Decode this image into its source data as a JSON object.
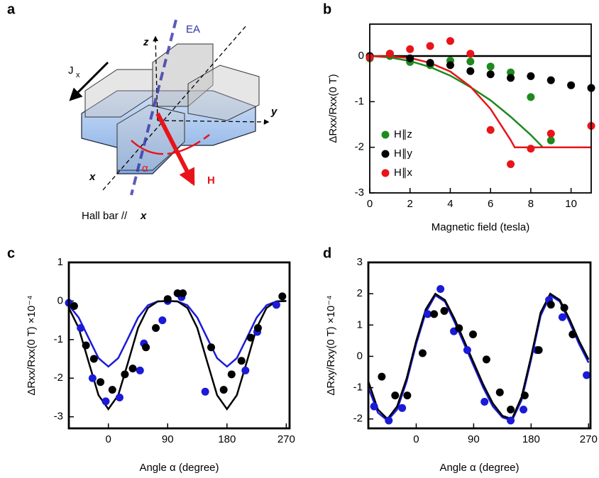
{
  "diagram": {
    "panel": "a",
    "ea": "EA",
    "z": "z",
    "y": "y",
    "x": "x",
    "j": "J",
    "j_sub": "x",
    "alpha": "α",
    "h": "H",
    "caption": "Hall bar //",
    "caption_axis": "x"
  },
  "chart_data": [
    {
      "type": "scatter",
      "panel": "b",
      "xlabel": "Magnetic field (tesla)",
      "ylabel": "ΔRxx/Rxx(0 T)",
      "xlim": [
        0,
        11
      ],
      "ylim": [
        -3,
        0.7
      ],
      "xticks": [
        0,
        2,
        4,
        6,
        8,
        10
      ],
      "yticks": [
        -3,
        -2,
        -1,
        0
      ],
      "legend": "lower left",
      "series": [
        {
          "mode": "line",
          "color": "#000000",
          "x": [
            0,
            11
          ],
          "values": [
            0,
            0
          ]
        },
        {
          "mode": "line",
          "color": "#1e8a1e",
          "x": [
            0,
            1,
            2,
            3,
            4,
            5,
            6,
            7,
            8,
            8.6,
            9,
            10,
            11
          ],
          "values": [
            0,
            -0.03,
            -0.11,
            -0.24,
            -0.43,
            -0.68,
            -0.97,
            -1.33,
            -1.73,
            -2,
            -2,
            -2,
            -2
          ]
        },
        {
          "mode": "line",
          "color": "#e8141a",
          "x": [
            0,
            1,
            2,
            3,
            4,
            5,
            6,
            7,
            7.2,
            8,
            9,
            10,
            11
          ],
          "values": [
            0,
            -0.01,
            -0.04,
            -0.15,
            -0.34,
            -0.67,
            -1.16,
            -1.84,
            -2,
            -2,
            -2,
            -2,
            -2
          ]
        },
        {
          "mode": "markers",
          "name": "H∥z",
          "color": "#1e8a1e",
          "x": [
            0,
            1,
            2,
            3,
            4,
            5,
            6,
            7,
            8,
            9
          ],
          "values": [
            -0.05,
            0,
            -0.13,
            -0.2,
            -0.1,
            -0.12,
            -0.23,
            -0.36,
            -0.9,
            -1.85
          ]
        },
        {
          "mode": "markers",
          "name": "H∥y",
          "color": "#000000",
          "x": [
            0,
            1,
            2,
            3,
            4,
            5,
            6,
            7,
            8,
            9,
            10,
            11
          ],
          "values": [
            0,
            0.05,
            -0.05,
            -0.15,
            -0.2,
            -0.33,
            -0.4,
            -0.48,
            -0.44,
            -0.53,
            -0.64,
            -0.7
          ]
        },
        {
          "mode": "markers",
          "name": "H∥x",
          "color": "#e8141a",
          "x": [
            0,
            1,
            2,
            3,
            4,
            5,
            6,
            7,
            8,
            9,
            11
          ],
          "values": [
            -0.03,
            0.05,
            0.15,
            0.22,
            0.33,
            0.05,
            -1.62,
            -2.37,
            -2.03,
            -1.7,
            -1.53
          ]
        }
      ]
    },
    {
      "type": "scatter",
      "panel": "c",
      "xlabel": "Angle α (degree)",
      "ylabel": "ΔRxx/Rxx(0 T) ×10⁻⁴",
      "xlim": [
        -60,
        275
      ],
      "ylim": [
        -3.3,
        1
      ],
      "xticks": [
        0,
        90,
        180,
        270
      ],
      "yticks": [
        -3,
        -2,
        -1,
        0,
        1
      ],
      "series": [
        {
          "mode": "line",
          "color": "#1a1ad8",
          "x": [
            -60,
            -45,
            -30,
            -15,
            0,
            15,
            30,
            45,
            60,
            75,
            90,
            105,
            120,
            135,
            150,
            165,
            180,
            195,
            210,
            225,
            240,
            255,
            270
          ],
          "values": [
            -0.11,
            -0.43,
            -0.96,
            -1.48,
            -1.7,
            -1.48,
            -0.96,
            -0.43,
            -0.11,
            -0.01,
            0,
            -0.01,
            -0.11,
            -0.43,
            -0.96,
            -1.48,
            -1.7,
            -1.48,
            -0.96,
            -0.43,
            -0.11,
            -0.01,
            0
          ]
        },
        {
          "mode": "line",
          "color": "#000000",
          "x": [
            -60,
            -45,
            -30,
            -15,
            0,
            15,
            30,
            45,
            60,
            75,
            90,
            105,
            120,
            135,
            150,
            165,
            180,
            195,
            210,
            225,
            240,
            255,
            270
          ],
          "values": [
            -0.18,
            -0.7,
            -1.58,
            -2.44,
            -2.8,
            -2.44,
            -1.58,
            -0.7,
            -0.18,
            -0.01,
            0,
            -0.01,
            -0.18,
            -0.7,
            -1.58,
            -2.44,
            -2.8,
            -2.44,
            -1.58,
            -0.7,
            -0.18,
            -0.01,
            0
          ]
        },
        {
          "mode": "markers",
          "color": "#1a1ad8",
          "x": [
            -60,
            -42,
            -24,
            -4,
            17,
            48,
            54,
            82,
            90,
            111,
            147,
            208,
            226,
            255
          ],
          "values": [
            -0.05,
            -0.7,
            -2,
            -2.6,
            -2.5,
            -1.8,
            -1.1,
            -0.5,
            0,
            0.1,
            -2.35,
            -1.8,
            -0.8,
            -0.1
          ]
        },
        {
          "mode": "markers",
          "color": "#000000",
          "x": [
            -52,
            -34,
            -22,
            -12,
            6,
            25,
            37,
            57,
            72,
            90,
            105,
            113,
            156,
            175,
            187,
            202,
            216,
            227,
            264
          ],
          "values": [
            -0.13,
            -1.15,
            -1.5,
            -2.1,
            -2.3,
            -1.9,
            -1.75,
            -1.2,
            -0.7,
            0.05,
            0.2,
            0.2,
            -1.2,
            -2.3,
            -1.9,
            -1.55,
            -0.95,
            -0.7,
            0.12
          ]
        }
      ]
    },
    {
      "type": "scatter",
      "panel": "d",
      "xlabel": "Angle α (degree)",
      "ylabel": "ΔRxy/Rxy(0 T) ×10⁻⁴",
      "xlim": [
        -75,
        273
      ],
      "ylim": [
        -2.3,
        3
      ],
      "xticks": [
        0,
        90,
        180,
        270
      ],
      "yticks": [
        -2,
        -1,
        0,
        1,
        2,
        3
      ],
      "series": [
        {
          "mode": "line",
          "color": "#1a1ad8",
          "x": [
            -75,
            -60,
            -45,
            -30,
            -15,
            0,
            15,
            30,
            45,
            60,
            75,
            90,
            105,
            120,
            135,
            150,
            165,
            180,
            195,
            210,
            225,
            240,
            255,
            270
          ],
          "values": [
            -1,
            -1.8,
            -2.05,
            -1.7,
            -0.8,
            0.4,
            1.4,
            1.95,
            1.75,
            1.1,
            0.4,
            -0.3,
            -1,
            -1.6,
            -1.95,
            -2.05,
            -1.4,
            -0.1,
            1.3,
            1.95,
            1.75,
            1.1,
            0.4,
            -0.2
          ]
        },
        {
          "mode": "line",
          "color": "#000000",
          "x": [
            -75,
            -60,
            -45,
            -30,
            -15,
            0,
            15,
            30,
            45,
            60,
            75,
            90,
            105,
            120,
            135,
            150,
            165,
            180,
            195,
            210,
            225,
            240,
            255,
            270
          ],
          "values": [
            -0.8,
            -1.7,
            -2,
            -1.6,
            -0.7,
            0.5,
            1.5,
            2,
            1.8,
            1.2,
            0.5,
            -0.2,
            -0.9,
            -1.5,
            -1.9,
            -2,
            -1.3,
            0,
            1.4,
            2,
            1.8,
            1.2,
            0.5,
            -0.1
          ]
        },
        {
          "mode": "markers",
          "color": "#1a1ad8",
          "x": [
            -66,
            -43,
            -22,
            18,
            38,
            59,
            80,
            107,
            148,
            168,
            189,
            208,
            229,
            267
          ],
          "values": [
            -1.6,
            -2.05,
            -1.65,
            1.35,
            2.15,
            0.8,
            0.2,
            -1.45,
            -2.05,
            -1.7,
            0.2,
            1.8,
            1.25,
            -0.6
          ]
        },
        {
          "mode": "markers",
          "color": "#000000",
          "x": [
            -54,
            -33,
            -14,
            10,
            28,
            44,
            67,
            89,
            110,
            131,
            148,
            170,
            192,
            211,
            232,
            245
          ],
          "values": [
            -0.65,
            -1.25,
            -1.25,
            0.1,
            1.35,
            1.45,
            0.9,
            0.7,
            -0.1,
            -1.15,
            -1.7,
            -1.25,
            0.2,
            1.65,
            1.55,
            0.7
          ]
        }
      ]
    }
  ]
}
